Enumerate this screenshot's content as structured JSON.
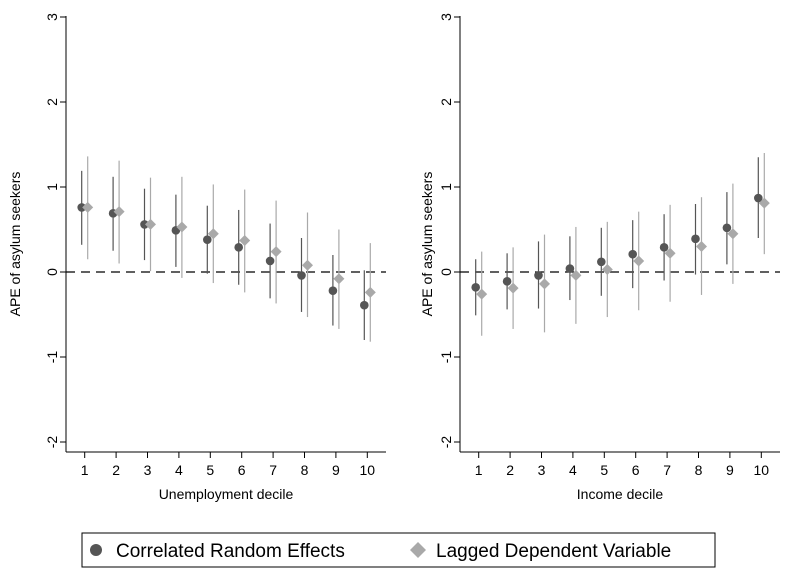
{
  "chart_data": [
    {
      "type": "scatter",
      "xlabel": "Unemployment decile",
      "ylabel": "APE of asylum seekers",
      "x": [
        1,
        2,
        3,
        4,
        5,
        6,
        7,
        8,
        9,
        10
      ],
      "xlim": [
        0.5,
        10.5
      ],
      "ylim": [
        -2,
        3
      ],
      "yticks": [
        -2,
        -1,
        0,
        1,
        2,
        3
      ],
      "reference_line": 0,
      "series": [
        {
          "name": "Correlated Random Effects",
          "values": [
            0.76,
            0.69,
            0.56,
            0.49,
            0.38,
            0.29,
            0.13,
            -0.04,
            -0.22,
            -0.39
          ],
          "ci_low": [
            0.32,
            0.25,
            0.14,
            0.06,
            -0.02,
            -0.15,
            -0.31,
            -0.47,
            -0.63,
            -0.8
          ],
          "ci_high": [
            1.19,
            1.12,
            0.98,
            0.91,
            0.78,
            0.73,
            0.57,
            0.4,
            0.2,
            0.02
          ]
        },
        {
          "name": "Lagged Dependent Variable",
          "values": [
            0.76,
            0.71,
            0.56,
            0.53,
            0.45,
            0.37,
            0.24,
            0.08,
            -0.08,
            -0.24
          ],
          "ci_low": [
            0.15,
            0.1,
            0.01,
            -0.07,
            -0.13,
            -0.24,
            -0.37,
            -0.53,
            -0.67,
            -0.82
          ],
          "ci_high": [
            1.36,
            1.31,
            1.11,
            1.12,
            1.03,
            0.97,
            0.84,
            0.7,
            0.5,
            0.34
          ]
        }
      ]
    },
    {
      "type": "scatter",
      "xlabel": "Income decile",
      "ylabel": "APE of asylum seekers",
      "x": [
        1,
        2,
        3,
        4,
        5,
        6,
        7,
        8,
        9,
        10
      ],
      "xlim": [
        0.5,
        10.5
      ],
      "ylim": [
        -2,
        3
      ],
      "yticks": [
        -2,
        -1,
        0,
        1,
        2,
        3
      ],
      "reference_line": 0,
      "series": [
        {
          "name": "Correlated Random Effects",
          "values": [
            -0.18,
            -0.11,
            -0.04,
            0.04,
            0.12,
            0.21,
            0.29,
            0.39,
            0.52,
            0.87
          ],
          "ci_low": [
            -0.51,
            -0.44,
            -0.43,
            -0.33,
            -0.28,
            -0.19,
            -0.1,
            -0.03,
            0.09,
            0.4
          ],
          "ci_high": [
            0.15,
            0.22,
            0.36,
            0.42,
            0.52,
            0.61,
            0.68,
            0.8,
            0.94,
            1.35
          ]
        },
        {
          "name": "Lagged Dependent Variable",
          "values": [
            -0.26,
            -0.19,
            -0.14,
            -0.04,
            0.03,
            0.13,
            0.22,
            0.3,
            0.45,
            0.81
          ],
          "ci_low": [
            -0.75,
            -0.67,
            -0.71,
            -0.61,
            -0.53,
            -0.45,
            -0.35,
            -0.27,
            -0.14,
            0.21
          ],
          "ci_high": [
            0.24,
            0.29,
            0.44,
            0.53,
            0.59,
            0.71,
            0.79,
            0.88,
            1.04,
            1.4
          ]
        }
      ]
    }
  ],
  "legend": {
    "items": [
      "Correlated Random Effects",
      "Lagged Dependent Variable"
    ],
    "placement": "bottom"
  },
  "colors": {
    "series_1": "#555555",
    "series_2": "#a9a9a9",
    "axis": "#000000",
    "reference_line": "#000000"
  }
}
